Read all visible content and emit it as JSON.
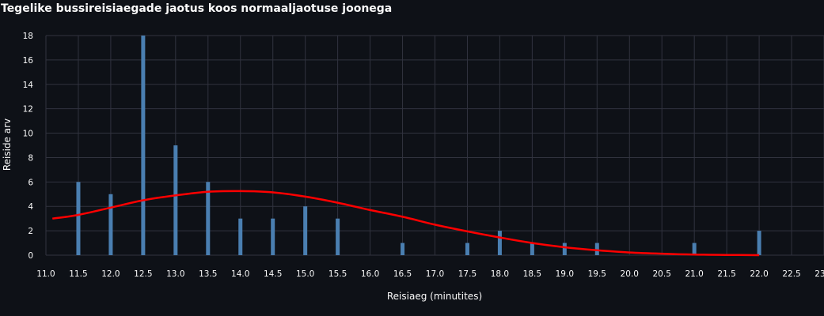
{
  "chart_data": {
    "type": "bar",
    "title": "Tegelike bussireisiaegade jaotus koos normaaljaotuse joonega",
    "xlabel": "Reisiaeg (minutites)",
    "ylabel": "Reiside arv",
    "xlim": [
      11.0,
      23.0
    ],
    "ylim": [
      0,
      18
    ],
    "xticks": [
      11.0,
      11.5,
      12.0,
      12.5,
      13.0,
      13.5,
      14.0,
      14.5,
      15.0,
      15.5,
      16.0,
      16.5,
      17.0,
      17.5,
      18.0,
      18.5,
      19.0,
      19.5,
      20.0,
      20.5,
      21.0,
      21.5,
      22.0,
      22.5,
      23.0
    ],
    "yticks": [
      0,
      2,
      4,
      6,
      8,
      10,
      12,
      14,
      16,
      18
    ],
    "series": [
      {
        "name": "Reiside arv",
        "kind": "bar",
        "color": "#4a7fb1",
        "x": [
          11.5,
          12.0,
          12.5,
          13.0,
          13.5,
          14.0,
          14.5,
          15.0,
          15.5,
          16.5,
          17.5,
          18.0,
          18.5,
          19.0,
          19.5,
          21.0,
          22.0
        ],
        "values": [
          6,
          5,
          18,
          9,
          6,
          3,
          3,
          4,
          3,
          1,
          1,
          2,
          1,
          1,
          1,
          1,
          2
        ]
      },
      {
        "name": "Normaaljaotus",
        "kind": "line",
        "color": "#ff0000",
        "x": [
          11.1,
          11.5,
          12.0,
          12.5,
          13.0,
          13.5,
          14.0,
          14.5,
          15.0,
          15.5,
          16.0,
          16.5,
          17.0,
          17.5,
          18.0,
          18.5,
          19.0,
          19.5,
          20.0,
          20.5,
          21.0,
          21.5,
          22.0
        ],
        "values": [
          3.0,
          3.3,
          3.9,
          4.5,
          4.9,
          5.2,
          5.25,
          5.15,
          4.8,
          4.3,
          3.7,
          3.15,
          2.5,
          1.95,
          1.45,
          1.0,
          0.65,
          0.4,
          0.22,
          0.12,
          0.05,
          0.02,
          0.0
        ]
      }
    ]
  }
}
